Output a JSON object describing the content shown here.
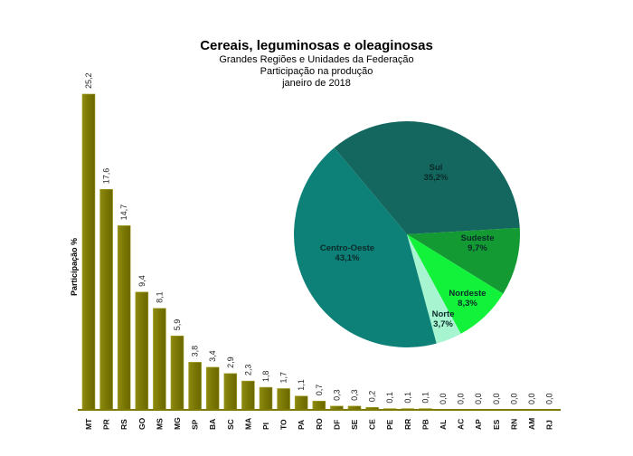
{
  "titles": {
    "title": "Cereais, leguminosas  e oleaginosas",
    "subtitle1": "Grandes  Regiões  e Unidades  da Federação",
    "subtitle2": "Participação na produção",
    "subtitle3": "janeiro de 2018"
  },
  "colors": {
    "bar": "#7d7a05",
    "bar_edge": "#a8a430",
    "axis": "#7d7a05",
    "pie": {
      "Sul": "#13675e",
      "Sudeste": "#139a33",
      "Nordeste": "#12f23a",
      "Norte": "#a6f4d0",
      "Centro-Oeste": "#0d8178"
    }
  },
  "chart_data": [
    {
      "type": "bar",
      "title": "Cereais, leguminosas e oleaginosas",
      "subtitle": "Grandes Regiões e Unidades da Federação — Participação na produção — janeiro de 2018",
      "xlabel": "",
      "ylabel": "Participação %",
      "categories": [
        "MT",
        "PR",
        "RS",
        "GO",
        "MS",
        "MG",
        "SP",
        "BA",
        "SC",
        "MA",
        "PI",
        "TO",
        "PA",
        "RO",
        "DF",
        "SE",
        "CE",
        "PE",
        "RR",
        "PB",
        "AL",
        "AC",
        "AP",
        "ES",
        "RN",
        "AM",
        "RJ"
      ],
      "values": [
        25.2,
        17.6,
        14.7,
        9.4,
        8.1,
        5.9,
        3.8,
        3.4,
        2.9,
        2.3,
        1.8,
        1.7,
        1.1,
        0.7,
        0.3,
        0.3,
        0.2,
        0.1,
        0.1,
        0.1,
        0.0,
        0.0,
        0.0,
        0.0,
        0.0,
        0.0,
        0.0
      ],
      "value_labels": [
        "25,2",
        "17,6",
        "14,7",
        "9,4",
        "8,1",
        "5,9",
        "3,8",
        "3,4",
        "2,9",
        "2,3",
        "1,8",
        "1,7",
        "1,1",
        "0,7",
        "0,3",
        "0,3",
        "0,2",
        "0,1",
        "0,1",
        "0,1",
        "0,0",
        "0,0",
        "0,0",
        "0,0",
        "0,0",
        "0,0",
        "0,0"
      ],
      "ylim": [
        0,
        26
      ],
      "grid": false,
      "legend": null
    },
    {
      "type": "pie",
      "categories": [
        "Sul",
        "Sudeste",
        "Nordeste",
        "Norte",
        "Centro-Oeste"
      ],
      "values": [
        35.2,
        9.7,
        8.3,
        3.7,
        43.1
      ],
      "labels": [
        "35,2%",
        "9,7%",
        "8,3%",
        "3,7%",
        "43,1%"
      ],
      "start_angle_deg": -40,
      "direction": "clockwise"
    }
  ]
}
